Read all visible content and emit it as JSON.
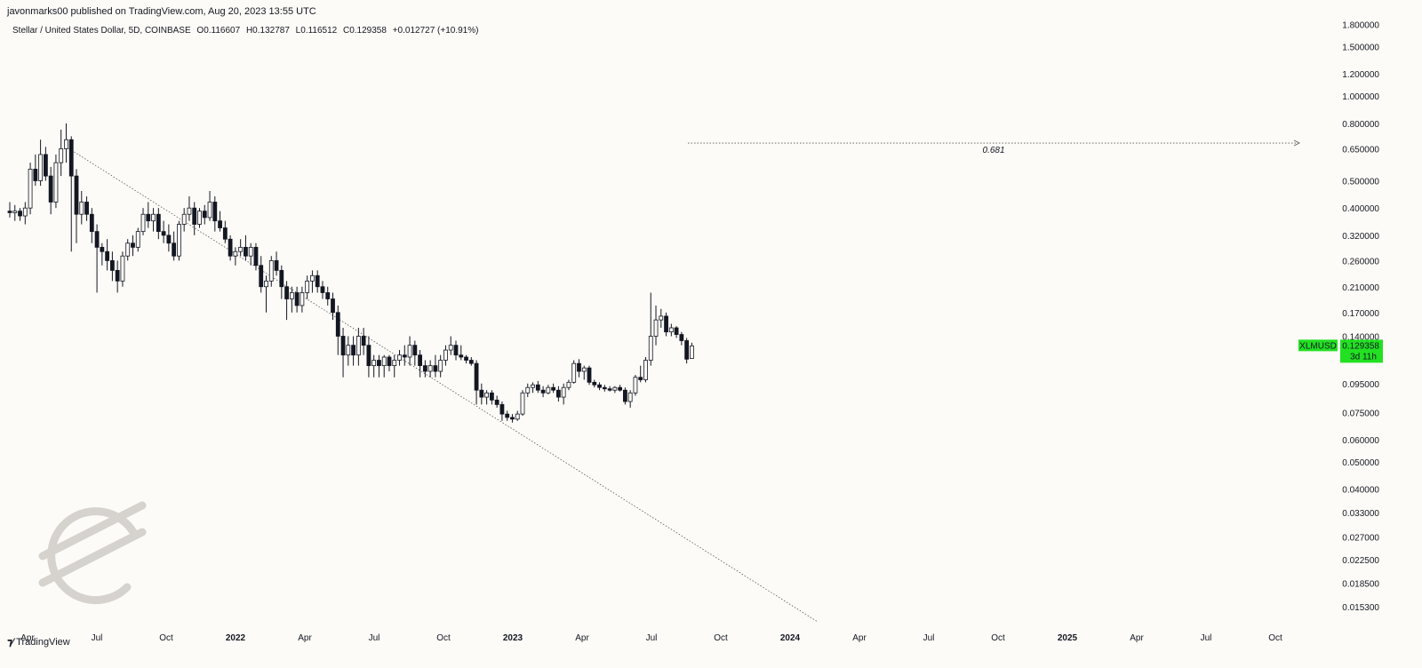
{
  "header": {
    "publisher": "javonmarks00 published on TradingView.com, Aug 20, 2023 13:55 UTC"
  },
  "legend": {
    "symbol_desc": "Stellar / United States Dollar, 5D, COINBASE",
    "open": "O0.116607",
    "high": "H0.132787",
    "low": "L0.116512",
    "close": "C0.129358",
    "change": "+0.012727 (+10.91%)"
  },
  "footer": {
    "brand": "TradingView"
  },
  "colors": {
    "background": "#fdfbf7",
    "candle": "#131722",
    "price_tag": "#22e022",
    "dotted_line": "#555555",
    "logo": "#d6d3ce"
  },
  "chart_data": {
    "type": "candlestick",
    "title": "Stellar / United States Dollar, 5D, COINBASE",
    "y_scale": "log",
    "ylim": [
      0.0135,
      1.9
    ],
    "y_ticks": [
      "1.800000",
      "1.500000",
      "1.200000",
      "1.000000",
      "0.800000",
      "0.650000",
      "0.500000",
      "0.400000",
      "0.320000",
      "0.260000",
      "0.210000",
      "0.170000",
      "0.140000",
      "0.095000",
      "0.075000",
      "0.060000",
      "0.050000",
      "0.040000",
      "0.033000",
      "0.027000",
      "0.022500",
      "0.018500",
      "0.015300"
    ],
    "x_ticks": [
      {
        "label": "Apr",
        "bold": false
      },
      {
        "label": "Jul",
        "bold": false
      },
      {
        "label": "Oct",
        "bold": false
      },
      {
        "label": "2022",
        "bold": true
      },
      {
        "label": "Apr",
        "bold": false
      },
      {
        "label": "Jul",
        "bold": false
      },
      {
        "label": "Oct",
        "bold": false
      },
      {
        "label": "2023",
        "bold": true
      },
      {
        "label": "Apr",
        "bold": false
      },
      {
        "label": "Jul",
        "bold": false
      },
      {
        "label": "Oct",
        "bold": false
      },
      {
        "label": "2024",
        "bold": true
      },
      {
        "label": "Apr",
        "bold": false
      },
      {
        "label": "Jul",
        "bold": false
      },
      {
        "label": "Oct",
        "bold": false
      },
      {
        "label": "2025",
        "bold": true
      },
      {
        "label": "Apr",
        "bold": false
      },
      {
        "label": "Jul",
        "bold": false
      },
      {
        "label": "Oct",
        "bold": false
      }
    ],
    "price_tag": {
      "symbol": "XLMUSD",
      "price": "0.129358",
      "countdown": "3d 11h",
      "value": 0.129358
    },
    "horizontal_level": {
      "label": "0.681",
      "value": 0.681
    },
    "trendline": [
      0.66,
      0.0135
    ],
    "candles": [
      {
        "o": 0.39,
        "h": 0.42,
        "l": 0.37,
        "c": 0.385
      },
      {
        "o": 0.385,
        "h": 0.41,
        "l": 0.36,
        "c": 0.39
      },
      {
        "o": 0.39,
        "h": 0.4,
        "l": 0.36,
        "c": 0.375
      },
      {
        "o": 0.375,
        "h": 0.42,
        "l": 0.35,
        "c": 0.4
      },
      {
        "o": 0.4,
        "h": 0.58,
        "l": 0.38,
        "c": 0.55
      },
      {
        "o": 0.55,
        "h": 0.62,
        "l": 0.48,
        "c": 0.5
      },
      {
        "o": 0.5,
        "h": 0.7,
        "l": 0.48,
        "c": 0.62
      },
      {
        "o": 0.62,
        "h": 0.66,
        "l": 0.5,
        "c": 0.52
      },
      {
        "o": 0.52,
        "h": 0.56,
        "l": 0.38,
        "c": 0.42
      },
      {
        "o": 0.42,
        "h": 0.62,
        "l": 0.4,
        "c": 0.58
      },
      {
        "o": 0.58,
        "h": 0.76,
        "l": 0.52,
        "c": 0.65
      },
      {
        "o": 0.65,
        "h": 0.8,
        "l": 0.58,
        "c": 0.7
      },
      {
        "o": 0.7,
        "h": 0.72,
        "l": 0.28,
        "c": 0.52
      },
      {
        "o": 0.52,
        "h": 0.55,
        "l": 0.3,
        "c": 0.38
      },
      {
        "o": 0.38,
        "h": 0.46,
        "l": 0.35,
        "c": 0.42
      },
      {
        "o": 0.42,
        "h": 0.44,
        "l": 0.36,
        "c": 0.38
      },
      {
        "o": 0.38,
        "h": 0.4,
        "l": 0.3,
        "c": 0.33
      },
      {
        "o": 0.33,
        "h": 0.35,
        "l": 0.2,
        "c": 0.29
      },
      {
        "o": 0.29,
        "h": 0.3,
        "l": 0.25,
        "c": 0.28
      },
      {
        "o": 0.28,
        "h": 0.31,
        "l": 0.24,
        "c": 0.26
      },
      {
        "o": 0.26,
        "h": 0.28,
        "l": 0.22,
        "c": 0.24
      },
      {
        "o": 0.24,
        "h": 0.26,
        "l": 0.2,
        "c": 0.22
      },
      {
        "o": 0.22,
        "h": 0.28,
        "l": 0.21,
        "c": 0.27
      },
      {
        "o": 0.27,
        "h": 0.31,
        "l": 0.26,
        "c": 0.3
      },
      {
        "o": 0.3,
        "h": 0.32,
        "l": 0.27,
        "c": 0.29
      },
      {
        "o": 0.29,
        "h": 0.34,
        "l": 0.28,
        "c": 0.33
      },
      {
        "o": 0.33,
        "h": 0.4,
        "l": 0.32,
        "c": 0.38
      },
      {
        "o": 0.38,
        "h": 0.42,
        "l": 0.34,
        "c": 0.36
      },
      {
        "o": 0.36,
        "h": 0.4,
        "l": 0.33,
        "c": 0.38
      },
      {
        "o": 0.38,
        "h": 0.4,
        "l": 0.31,
        "c": 0.33
      },
      {
        "o": 0.33,
        "h": 0.36,
        "l": 0.3,
        "c": 0.32
      },
      {
        "o": 0.32,
        "h": 0.35,
        "l": 0.28,
        "c": 0.3
      },
      {
        "o": 0.3,
        "h": 0.33,
        "l": 0.26,
        "c": 0.27
      },
      {
        "o": 0.27,
        "h": 0.36,
        "l": 0.26,
        "c": 0.35
      },
      {
        "o": 0.35,
        "h": 0.4,
        "l": 0.33,
        "c": 0.38
      },
      {
        "o": 0.38,
        "h": 0.44,
        "l": 0.36,
        "c": 0.4
      },
      {
        "o": 0.4,
        "h": 0.42,
        "l": 0.32,
        "c": 0.35
      },
      {
        "o": 0.35,
        "h": 0.4,
        "l": 0.34,
        "c": 0.39
      },
      {
        "o": 0.39,
        "h": 0.41,
        "l": 0.35,
        "c": 0.37
      },
      {
        "o": 0.37,
        "h": 0.46,
        "l": 0.36,
        "c": 0.42
      },
      {
        "o": 0.42,
        "h": 0.44,
        "l": 0.33,
        "c": 0.36
      },
      {
        "o": 0.36,
        "h": 0.39,
        "l": 0.33,
        "c": 0.34
      },
      {
        "o": 0.34,
        "h": 0.36,
        "l": 0.3,
        "c": 0.31
      },
      {
        "o": 0.31,
        "h": 0.32,
        "l": 0.26,
        "c": 0.27
      },
      {
        "o": 0.27,
        "h": 0.29,
        "l": 0.25,
        "c": 0.28
      },
      {
        "o": 0.28,
        "h": 0.31,
        "l": 0.27,
        "c": 0.29
      },
      {
        "o": 0.29,
        "h": 0.32,
        "l": 0.26,
        "c": 0.27
      },
      {
        "o": 0.27,
        "h": 0.3,
        "l": 0.25,
        "c": 0.29
      },
      {
        "o": 0.29,
        "h": 0.3,
        "l": 0.24,
        "c": 0.25
      },
      {
        "o": 0.25,
        "h": 0.27,
        "l": 0.2,
        "c": 0.21
      },
      {
        "o": 0.21,
        "h": 0.23,
        "l": 0.17,
        "c": 0.22
      },
      {
        "o": 0.22,
        "h": 0.27,
        "l": 0.21,
        "c": 0.26
      },
      {
        "o": 0.26,
        "h": 0.28,
        "l": 0.23,
        "c": 0.24
      },
      {
        "o": 0.24,
        "h": 0.25,
        "l": 0.19,
        "c": 0.21
      },
      {
        "o": 0.21,
        "h": 0.22,
        "l": 0.16,
        "c": 0.19
      },
      {
        "o": 0.19,
        "h": 0.21,
        "l": 0.17,
        "c": 0.2
      },
      {
        "o": 0.2,
        "h": 0.21,
        "l": 0.17,
        "c": 0.18
      },
      {
        "o": 0.18,
        "h": 0.21,
        "l": 0.17,
        "c": 0.2
      },
      {
        "o": 0.2,
        "h": 0.23,
        "l": 0.19,
        "c": 0.22
      },
      {
        "o": 0.22,
        "h": 0.24,
        "l": 0.2,
        "c": 0.23
      },
      {
        "o": 0.23,
        "h": 0.24,
        "l": 0.2,
        "c": 0.21
      },
      {
        "o": 0.21,
        "h": 0.22,
        "l": 0.19,
        "c": 0.2
      },
      {
        "o": 0.2,
        "h": 0.21,
        "l": 0.18,
        "c": 0.19
      },
      {
        "o": 0.19,
        "h": 0.2,
        "l": 0.16,
        "c": 0.17
      },
      {
        "o": 0.17,
        "h": 0.18,
        "l": 0.12,
        "c": 0.14
      },
      {
        "o": 0.14,
        "h": 0.15,
        "l": 0.1,
        "c": 0.12
      },
      {
        "o": 0.12,
        "h": 0.14,
        "l": 0.11,
        "c": 0.13
      },
      {
        "o": 0.13,
        "h": 0.14,
        "l": 0.11,
        "c": 0.12
      },
      {
        "o": 0.12,
        "h": 0.15,
        "l": 0.11,
        "c": 0.14
      },
      {
        "o": 0.14,
        "h": 0.15,
        "l": 0.12,
        "c": 0.13
      },
      {
        "o": 0.13,
        "h": 0.14,
        "l": 0.1,
        "c": 0.11
      },
      {
        "o": 0.11,
        "h": 0.12,
        "l": 0.1,
        "c": 0.115
      },
      {
        "o": 0.115,
        "h": 0.12,
        "l": 0.1,
        "c": 0.11
      },
      {
        "o": 0.11,
        "h": 0.12,
        "l": 0.1,
        "c": 0.118
      },
      {
        "o": 0.118,
        "h": 0.12,
        "l": 0.105,
        "c": 0.11
      },
      {
        "o": 0.11,
        "h": 0.12,
        "l": 0.1,
        "c": 0.115
      },
      {
        "o": 0.115,
        "h": 0.125,
        "l": 0.11,
        "c": 0.12
      },
      {
        "o": 0.12,
        "h": 0.13,
        "l": 0.11,
        "c": 0.118
      },
      {
        "o": 0.118,
        "h": 0.14,
        "l": 0.11,
        "c": 0.13
      },
      {
        "o": 0.13,
        "h": 0.135,
        "l": 0.11,
        "c": 0.12
      },
      {
        "o": 0.12,
        "h": 0.125,
        "l": 0.1,
        "c": 0.11
      },
      {
        "o": 0.11,
        "h": 0.115,
        "l": 0.1,
        "c": 0.105
      },
      {
        "o": 0.105,
        "h": 0.115,
        "l": 0.1,
        "c": 0.11
      },
      {
        "o": 0.11,
        "h": 0.12,
        "l": 0.1,
        "c": 0.105
      },
      {
        "o": 0.105,
        "h": 0.12,
        "l": 0.1,
        "c": 0.115
      },
      {
        "o": 0.115,
        "h": 0.13,
        "l": 0.11,
        "c": 0.125
      },
      {
        "o": 0.125,
        "h": 0.14,
        "l": 0.12,
        "c": 0.13
      },
      {
        "o": 0.13,
        "h": 0.135,
        "l": 0.115,
        "c": 0.12
      },
      {
        "o": 0.12,
        "h": 0.13,
        "l": 0.115,
        "c": 0.118
      },
      {
        "o": 0.118,
        "h": 0.12,
        "l": 0.112,
        "c": 0.115
      },
      {
        "o": 0.115,
        "h": 0.118,
        "l": 0.11,
        "c": 0.112
      },
      {
        "o": 0.112,
        "h": 0.115,
        "l": 0.08,
        "c": 0.09
      },
      {
        "o": 0.09,
        "h": 0.095,
        "l": 0.08,
        "c": 0.085
      },
      {
        "o": 0.085,
        "h": 0.09,
        "l": 0.08,
        "c": 0.088
      },
      {
        "o": 0.088,
        "h": 0.09,
        "l": 0.08,
        "c": 0.083
      },
      {
        "o": 0.083,
        "h": 0.086,
        "l": 0.078,
        "c": 0.08
      },
      {
        "o": 0.08,
        "h": 0.082,
        "l": 0.07,
        "c": 0.074
      },
      {
        "o": 0.074,
        "h": 0.076,
        "l": 0.07,
        "c": 0.072
      },
      {
        "o": 0.072,
        "h": 0.074,
        "l": 0.069,
        "c": 0.071
      },
      {
        "o": 0.071,
        "h": 0.076,
        "l": 0.07,
        "c": 0.074
      },
      {
        "o": 0.074,
        "h": 0.09,
        "l": 0.073,
        "c": 0.088
      },
      {
        "o": 0.088,
        "h": 0.095,
        "l": 0.085,
        "c": 0.092
      },
      {
        "o": 0.092,
        "h": 0.096,
        "l": 0.088,
        "c": 0.094
      },
      {
        "o": 0.094,
        "h": 0.097,
        "l": 0.088,
        "c": 0.09
      },
      {
        "o": 0.09,
        "h": 0.093,
        "l": 0.085,
        "c": 0.088
      },
      {
        "o": 0.088,
        "h": 0.094,
        "l": 0.087,
        "c": 0.092
      },
      {
        "o": 0.092,
        "h": 0.095,
        "l": 0.088,
        "c": 0.09
      },
      {
        "o": 0.09,
        "h": 0.093,
        "l": 0.082,
        "c": 0.085
      },
      {
        "o": 0.085,
        "h": 0.095,
        "l": 0.08,
        "c": 0.092
      },
      {
        "o": 0.092,
        "h": 0.098,
        "l": 0.09,
        "c": 0.096
      },
      {
        "o": 0.096,
        "h": 0.115,
        "l": 0.095,
        "c": 0.112
      },
      {
        "o": 0.112,
        "h": 0.116,
        "l": 0.1,
        "c": 0.105
      },
      {
        "o": 0.105,
        "h": 0.11,
        "l": 0.098,
        "c": 0.108
      },
      {
        "o": 0.108,
        "h": 0.11,
        "l": 0.094,
        "c": 0.096
      },
      {
        "o": 0.096,
        "h": 0.098,
        "l": 0.092,
        "c": 0.094
      },
      {
        "o": 0.094,
        "h": 0.096,
        "l": 0.09,
        "c": 0.092
      },
      {
        "o": 0.092,
        "h": 0.094,
        "l": 0.089,
        "c": 0.091
      },
      {
        "o": 0.091,
        "h": 0.093,
        "l": 0.089,
        "c": 0.09
      },
      {
        "o": 0.09,
        "h": 0.093,
        "l": 0.088,
        "c": 0.092
      },
      {
        "o": 0.092,
        "h": 0.094,
        "l": 0.089,
        "c": 0.09
      },
      {
        "o": 0.09,
        "h": 0.092,
        "l": 0.08,
        "c": 0.082
      },
      {
        "o": 0.082,
        "h": 0.09,
        "l": 0.078,
        "c": 0.088
      },
      {
        "o": 0.088,
        "h": 0.102,
        "l": 0.086,
        "c": 0.1
      },
      {
        "o": 0.1,
        "h": 0.11,
        "l": 0.096,
        "c": 0.098
      },
      {
        "o": 0.098,
        "h": 0.118,
        "l": 0.096,
        "c": 0.115
      },
      {
        "o": 0.115,
        "h": 0.2,
        "l": 0.11,
        "c": 0.14
      },
      {
        "o": 0.14,
        "h": 0.18,
        "l": 0.13,
        "c": 0.16
      },
      {
        "o": 0.16,
        "h": 0.175,
        "l": 0.15,
        "c": 0.165
      },
      {
        "o": 0.165,
        "h": 0.17,
        "l": 0.14,
        "c": 0.145
      },
      {
        "o": 0.145,
        "h": 0.155,
        "l": 0.14,
        "c": 0.15
      },
      {
        "o": 0.15,
        "h": 0.152,
        "l": 0.138,
        "c": 0.142
      },
      {
        "o": 0.142,
        "h": 0.145,
        "l": 0.13,
        "c": 0.135
      },
      {
        "o": 0.135,
        "h": 0.138,
        "l": 0.112,
        "c": 0.116
      },
      {
        "o": 0.116607,
        "h": 0.132787,
        "l": 0.116512,
        "c": 0.129358
      }
    ]
  }
}
